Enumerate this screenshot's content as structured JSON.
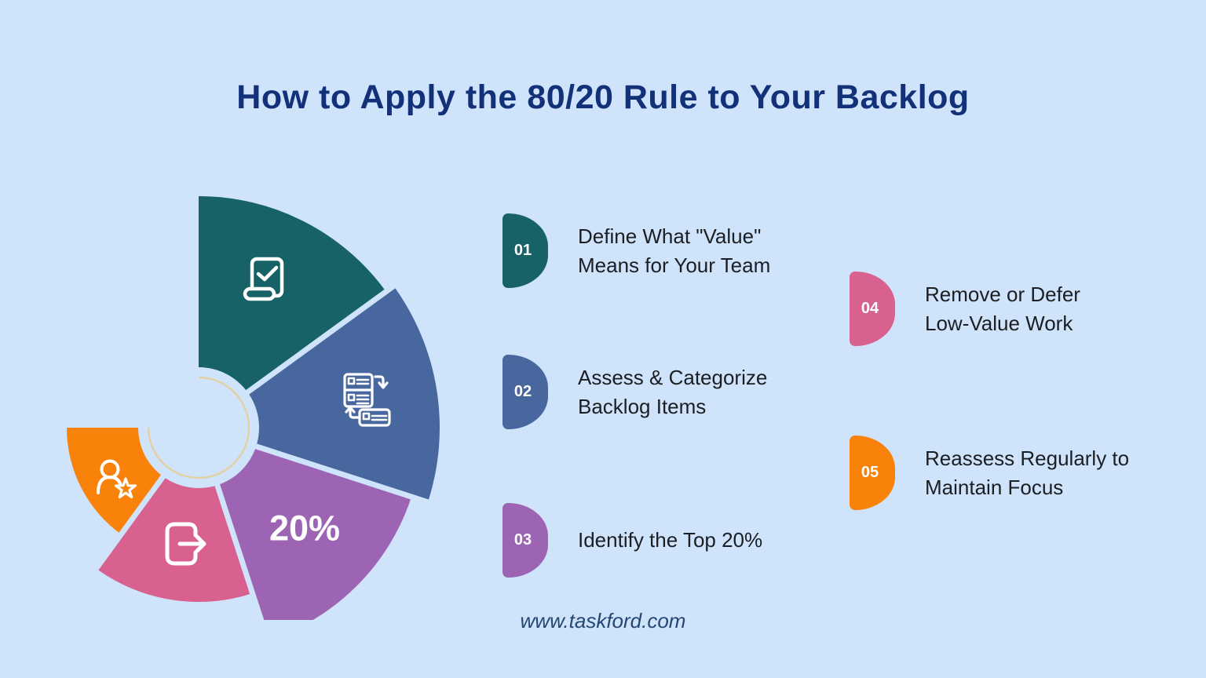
{
  "page": {
    "title": "How to Apply the 80/20 Rule to Your Backlog",
    "footer": "www.taskford.com"
  },
  "colors": {
    "background": "#cfe3fa",
    "title": "#123178",
    "body_text": "#1b1e23",
    "footer": "#234672",
    "icon_stroke": "#ffffff"
  },
  "donut": {
    "percent_label": "20%",
    "inner_radius": 77,
    "ring": {
      "radius": 64,
      "color": "#e3d0a4"
    },
    "segments": [
      {
        "name": "define-value",
        "color": "#176267",
        "a0": -90,
        "a1": -36,
        "r_out": 295,
        "icon": "ballot-check-icon"
      },
      {
        "name": "assess-categorize",
        "color": "#47679e",
        "a0": -36,
        "a1": 18,
        "r_out": 307,
        "icon": "backlog-items-icon"
      },
      {
        "name": "identify-top-20",
        "color": "#9c64b3",
        "a0": 18,
        "a1": 72,
        "r_out": 285,
        "icon": "percent-label"
      },
      {
        "name": "remove-defer",
        "color": "#d9618f",
        "a0": 72,
        "a1": 126,
        "r_out": 222,
        "icon": "logout-arrow-icon"
      },
      {
        "name": "reassess",
        "color": "#f8820a",
        "a0": 126,
        "a1": 180,
        "r_out": 168,
        "icon": "person-star-icon"
      }
    ]
  },
  "steps": [
    {
      "num": "01",
      "color": "#176267",
      "lines": [
        "Define What \"Value\"",
        "Means for Your Team"
      ]
    },
    {
      "num": "02",
      "color": "#47679e",
      "lines": [
        "Assess & Categorize",
        "Backlog Items"
      ]
    },
    {
      "num": "03",
      "color": "#9c64b3",
      "lines": [
        "Identify the Top 20%"
      ]
    },
    {
      "num": "04",
      "color": "#d9618f",
      "lines": [
        "Remove or Defer",
        "Low-Value Work"
      ]
    },
    {
      "num": "05",
      "color": "#f8820a",
      "lines": [
        "Reassess Regularly to",
        "Maintain Focus"
      ]
    }
  ]
}
